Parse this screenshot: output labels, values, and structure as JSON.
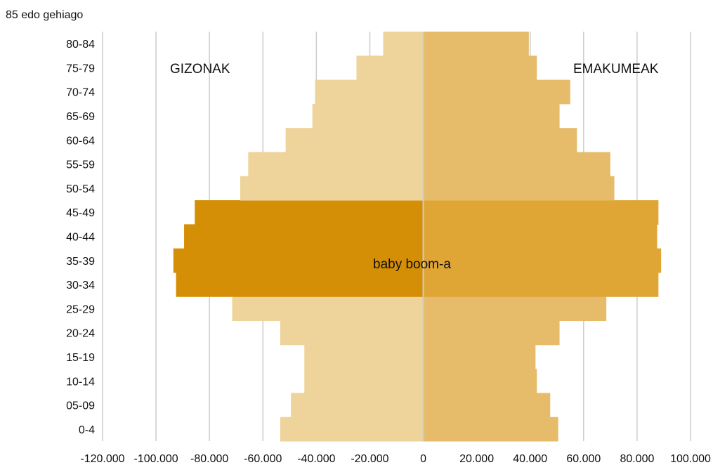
{
  "chart_data": {
    "type": "bar",
    "orientation": "horizontal-population-pyramid",
    "top_label": "85 edo gehiago",
    "categories": [
      "0-4",
      "05-09",
      "10-14",
      "15-19",
      "20-24",
      "25-29",
      "30-34",
      "35-39",
      "40-44",
      "45-49",
      "50-54",
      "55-59",
      "60-64",
      "65-69",
      "70-74",
      "75-79",
      "80-84"
    ],
    "series": [
      {
        "name": "GIZONAK",
        "values": [
          -53500,
          -49500,
          -44500,
          -44500,
          -53500,
          -71500,
          -92500,
          -93500,
          -89500,
          -85500,
          -68500,
          -65500,
          -51500,
          -41500,
          -40500,
          -25000,
          -15000
        ]
      },
      {
        "name": "EMAKUMEAK",
        "values": [
          50500,
          47500,
          42500,
          42000,
          51000,
          68500,
          88000,
          89000,
          87500,
          88000,
          71500,
          70000,
          57500,
          51000,
          55000,
          42500,
          39500
        ]
      }
    ],
    "highlight": {
      "label": "baby boom-a",
      "categories": [
        "30-34",
        "35-39",
        "40-44",
        "45-49"
      ]
    },
    "xlim": [
      -120000,
      100000
    ],
    "xticks": [
      -120000,
      -100000,
      -80000,
      -60000,
      -40000,
      -20000,
      0,
      20000,
      40000,
      60000,
      80000,
      100000
    ],
    "xtick_labels": [
      "-120.000",
      "-100.000",
      "-80.000",
      "-60.000",
      "-40.000",
      "-20.000",
      "0",
      "20.000",
      "40.000",
      "60.000",
      "80.000",
      "100.000"
    ],
    "grid": true,
    "colors": {
      "men": "#eed39a",
      "women": "#e6bc6a",
      "men_highlight": "#d48f06",
      "women_highlight": "#dfa535",
      "grid": "#cccccc",
      "center_line": "#cccccc"
    }
  }
}
